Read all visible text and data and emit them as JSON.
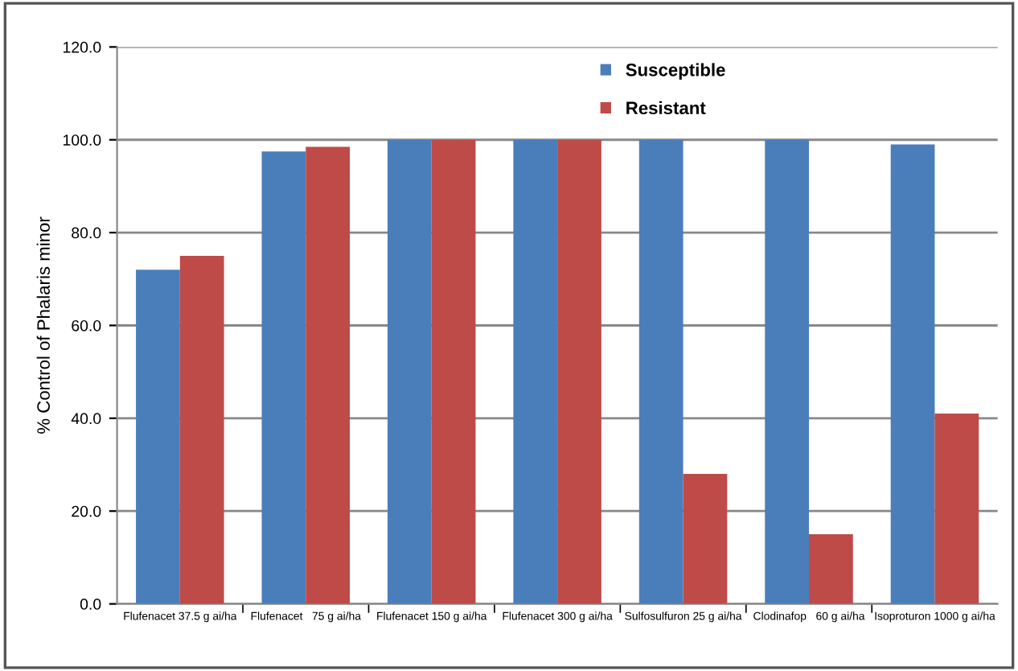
{
  "chart_data": {
    "type": "bar",
    "categories": [
      "Flufenacet 37.5 g ai/ha",
      "Flufenacet   75 g ai/ha",
      "Flufenacet 150 g ai/ha",
      "Flufenacet 300 g ai/ha",
      "Sulfosulfuron 25 g ai/ha",
      "Clodinafop   60 g ai/ha",
      "Isoproturon 1000 g ai/ha"
    ],
    "series": [
      {
        "name": "Susceptible",
        "color": "#4a7ebb",
        "values": [
          72,
          97.5,
          100,
          100,
          100,
          100,
          99
        ]
      },
      {
        "name": "Resistant",
        "color": "#be4b48",
        "values": [
          75,
          98.5,
          100,
          100,
          28,
          15,
          41
        ]
      }
    ],
    "ylabel": "% Control of Phalaris minor",
    "ylim": [
      0,
      120
    ],
    "yticks": [
      {
        "value": 0,
        "label": "0.0"
      },
      {
        "value": 20,
        "label": "20.0"
      },
      {
        "value": 40,
        "label": "40.0"
      },
      {
        "value": 60,
        "label": "60.0"
      },
      {
        "value": 80,
        "label": "80.0"
      },
      {
        "value": 100,
        "label": "100.0"
      },
      {
        "value": 120,
        "label": "120.0"
      }
    ],
    "grid": "y",
    "legend": "top"
  }
}
